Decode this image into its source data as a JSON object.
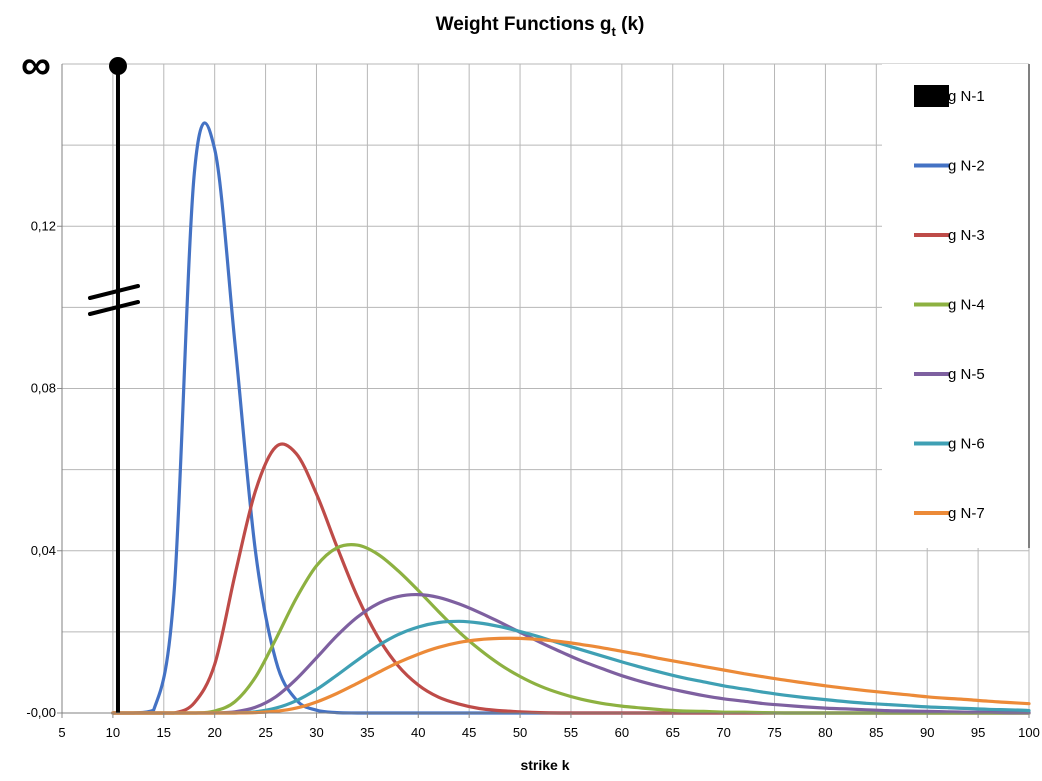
{
  "chart_data": {
    "type": "line",
    "title": "Weight Functions g",
    "title_subscript": "t",
    "title_suffix": " (k)",
    "xlabel": "strike k",
    "ylabel": "",
    "xlim": [
      5,
      100
    ],
    "ylim": [
      0,
      0.16
    ],
    "x_ticks": [
      5,
      10,
      15,
      20,
      25,
      30,
      35,
      40,
      45,
      50,
      55,
      60,
      65,
      70,
      75,
      80,
      85,
      90,
      95,
      100
    ],
    "x_tick_labels": [
      "5",
      "10",
      "15",
      "20",
      "25",
      "30",
      "35",
      "40",
      "45",
      "50",
      "55",
      "60",
      "65",
      "70",
      "75",
      "80",
      "85",
      "90",
      "95",
      "100"
    ],
    "y_ticks": [
      0,
      0.04,
      0.08,
      0.12
    ],
    "y_tick_labels": [
      "-0,00",
      "0,04",
      "0,08",
      "0,12"
    ],
    "infinity_label": "∞",
    "grid": true,
    "legend_position": "right",
    "x": [
      10,
      12,
      14,
      16,
      18,
      20,
      22,
      24,
      26,
      28,
      30,
      32,
      34,
      36,
      38,
      40,
      42,
      44,
      46,
      48,
      50,
      52,
      54,
      56,
      58,
      60,
      62,
      64,
      66,
      68,
      70,
      72,
      74,
      76,
      78,
      80,
      82,
      84,
      86,
      88,
      90,
      92,
      94,
      96,
      98,
      100
    ],
    "spike": {
      "name": "g N-1",
      "x": 10.5,
      "value": "infinity",
      "color": "#000000"
    },
    "series": [
      {
        "name": "g N-2",
        "color": "#4472c4",
        "values": [
          0,
          0,
          0.0007,
          0.0295,
          0.133,
          0.139,
          0.091,
          0.04,
          0.013,
          0.0033,
          0.0007,
          0.0001,
          0,
          0,
          0,
          0,
          0,
          0,
          0,
          0,
          0,
          0,
          0,
          0,
          0,
          0,
          0,
          0,
          0,
          0,
          0,
          0,
          0,
          0,
          0,
          0,
          0,
          0,
          0,
          0,
          0,
          0,
          0,
          0,
          0,
          0
        ]
      },
      {
        "name": "g N-3",
        "color": "#be4b48",
        "values": [
          0,
          0,
          0,
          0,
          0.0025,
          0.012,
          0.0341,
          0.0547,
          0.0656,
          0.064,
          0.054,
          0.0411,
          0.0288,
          0.0189,
          0.0117,
          0.0069,
          0.0039,
          0.0022,
          0.0011,
          0.0006,
          0.0003,
          0.0001,
          0,
          0,
          0,
          0,
          0,
          0,
          0,
          0,
          0,
          0,
          0,
          0,
          0,
          0,
          0,
          0,
          0,
          0,
          0,
          0,
          0,
          0,
          0,
          0
        ]
      },
      {
        "name": "g N-4",
        "color": "#8db141",
        "values": [
          0,
          0,
          0,
          0,
          0,
          0.0005,
          0.0028,
          0.0088,
          0.0182,
          0.0282,
          0.0363,
          0.0407,
          0.0414,
          0.0392,
          0.0351,
          0.0302,
          0.025,
          0.02,
          0.0157,
          0.012,
          0.009,
          0.0066,
          0.0048,
          0.0034,
          0.0024,
          0.0017,
          0.0012,
          0.0008,
          0.0005,
          0.0004,
          0.0002,
          0.0002,
          0.0001,
          0,
          0,
          0,
          0,
          0,
          0,
          0,
          0,
          0,
          0,
          0,
          0,
          0
        ]
      },
      {
        "name": "g N-5",
        "color": "#7e60a0",
        "values": [
          0,
          0,
          0,
          0,
          0,
          0,
          0.0003,
          0.0014,
          0.004,
          0.0083,
          0.0136,
          0.019,
          0.0236,
          0.0269,
          0.0287,
          0.0292,
          0.0285,
          0.0269,
          0.0248,
          0.0224,
          0.0199,
          0.0174,
          0.0151,
          0.0129,
          0.011,
          0.0092,
          0.0077,
          0.0064,
          0.0053,
          0.0043,
          0.0035,
          0.0029,
          0.0023,
          0.0019,
          0.0015,
          0.0012,
          0.001,
          0.0008,
          0.0006,
          0.0005,
          0.0004,
          0.0003,
          0.0002,
          0.0002,
          0.0001,
          0.0001
        ]
      },
      {
        "name": "g N-6",
        "color": "#3fa0b4",
        "values": [
          0,
          0,
          0,
          0,
          0,
          0,
          0,
          0.0003,
          0.0012,
          0.003,
          0.0058,
          0.0093,
          0.013,
          0.0165,
          0.0193,
          0.0212,
          0.0223,
          0.0226,
          0.0222,
          0.0213,
          0.0201,
          0.0187,
          0.0171,
          0.0156,
          0.0141,
          0.0126,
          0.0112,
          0.0099,
          0.0087,
          0.0077,
          0.0067,
          0.0059,
          0.0051,
          0.0044,
          0.0038,
          0.0033,
          0.0028,
          0.0024,
          0.0021,
          0.0018,
          0.0015,
          0.0013,
          0.0011,
          0.0009,
          0.0008,
          0.0006
        ]
      },
      {
        "name": "g N-7",
        "color": "#ec8a38",
        "values": [
          0,
          0,
          0,
          0,
          0,
          0,
          0,
          0.0001,
          0.0004,
          0.0012,
          0.0027,
          0.0048,
          0.0073,
          0.0099,
          0.0124,
          0.0145,
          0.0162,
          0.0174,
          0.0181,
          0.0184,
          0.0184,
          0.0181,
          0.0176,
          0.0169,
          0.0161,
          0.0152,
          0.0143,
          0.0133,
          0.0124,
          0.0115,
          0.0106,
          0.0097,
          0.0089,
          0.0081,
          0.0074,
          0.0067,
          0.0061,
          0.0055,
          0.005,
          0.0045,
          0.004,
          0.0036,
          0.0033,
          0.0029,
          0.0026,
          0.0023
        ]
      }
    ],
    "legend": [
      "g N-1",
      "g N-2",
      "g N-3",
      "g N-4",
      "g N-5",
      "g N-6",
      "g N-7"
    ]
  }
}
